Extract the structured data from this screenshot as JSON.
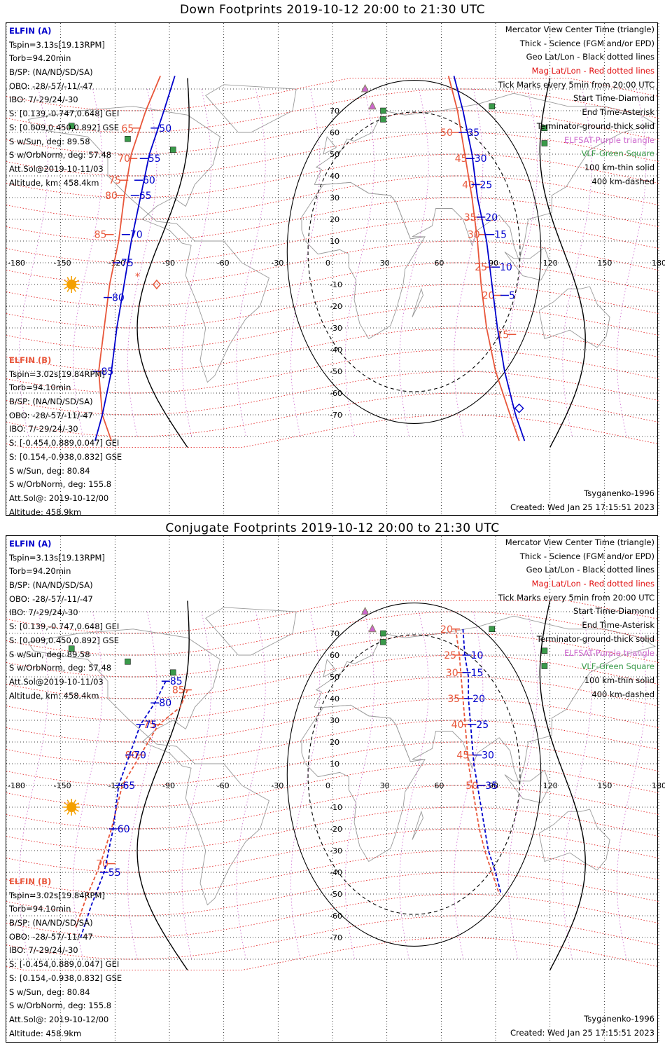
{
  "colors": {
    "elfin_a": "#0000cc",
    "elfin_b": "#e8563a",
    "mag_grid": "#e01010",
    "geo_grid": "#000000",
    "elfsat": "#cc66cc",
    "vlf": "#3a9a4a",
    "land": "#9a9a9a",
    "sun": "#f4a000"
  },
  "lon_ticks": [
    "-180",
    "-150",
    "-120",
    "-90",
    "-60",
    "-30",
    "0",
    "30",
    "60",
    "90",
    "120",
    "150",
    "180"
  ],
  "lat_ticks": [
    "70",
    "60",
    "50",
    "40",
    "30",
    "20",
    "10",
    "0",
    "-10",
    "-20",
    "-30",
    "-40",
    "-50",
    "-60",
    "-70"
  ],
  "legend": [
    "Mercator View Center Time (triangle)",
    "Thick - Science (FGM and/or EPD)",
    "Geo Lat/Lon - Black dotted lines",
    "Mag Lat/Lon - Red dotted lines",
    "Tick Marks every 5min from 20:00 UTC",
    "Start Time-Diamond",
    "End Time-Asterisk",
    "Terminator-ground-thick solid",
    "ELFSAT-Purple triangle",
    "VLF-Green Square",
    "100 km-thin solid",
    "400 km-dashed"
  ],
  "elfin_a": {
    "title": "ELFIN (A)",
    "lines": [
      "Tspin=3.13s[19.13RPM]",
      "Torb=94.20min",
      "B/SP: (NA/ND/SD/SA)",
      "OBO: -28/-57/-11/-47",
      "IBO: 7/-29/24/-30",
      "S: [0.139,-0.747,0.648] GEI",
      "S: [0.009,0.450,0.892] GSE",
      "S w/Sun, deg: 89.58",
      "S w/OrbNorm, deg: 57.48",
      "Att.Sol@2019-10-11/03",
      "Altitude, km: 458.4km"
    ]
  },
  "elfin_b": {
    "title": "ELFIN (B)",
    "lines": [
      "Tspin=3.02s[19.84RPM]",
      "Torb=94.10min",
      "B/SP: (NA/ND/SD/SA)",
      "OBO: -28/-57/-11/-47",
      "IBO: 7/-29/24/-30",
      "S: [-0.454,0.889,0.047] GEI",
      "S: [0.154,-0.938,0.832] GSE",
      "S w/Sun, deg: 80.84",
      "S w/OrbNorm, deg: 155.8",
      "Att.Sol@: 2019-10-12/00",
      "Altitude: 458.9km"
    ]
  },
  "model": "Tsyganenko-1996",
  "created": "Created: Wed Jan 25 17:15:51 2023",
  "panels": [
    {
      "id": "down",
      "title": "Down Footprints 2019-10-12 20:00 to 21:30 UTC",
      "a_west": {
        "style": "solid",
        "pts": [
          [
            -87,
            86
          ],
          [
            -93,
            70
          ],
          [
            -101,
            50
          ],
          [
            -106,
            30
          ],
          [
            -111,
            10
          ],
          [
            -115,
            -10
          ],
          [
            -119,
            -30
          ],
          [
            -122,
            -50
          ],
          [
            -127,
            -70
          ],
          [
            -131,
            -82
          ]
        ],
        "ticks": [
          [
            "50",
            -98,
            62
          ],
          [
            "55",
            -104,
            48
          ],
          [
            "60",
            -107,
            38
          ],
          [
            "65",
            -109,
            31
          ],
          [
            "70",
            -114,
            13
          ],
          [
            "75",
            -119,
            0
          ],
          [
            "80",
            -124,
            -16
          ],
          [
            "85",
            -130,
            -50
          ]
        ]
      },
      "b_west": {
        "style": "solid",
        "pts": [
          [
            -95,
            86
          ],
          [
            -103,
            70
          ],
          [
            -111,
            50
          ],
          [
            -115,
            30
          ],
          [
            -118,
            10
          ],
          [
            -123,
            -10
          ],
          [
            -126,
            -30
          ],
          [
            -129,
            -50
          ],
          [
            -127,
            -70
          ],
          [
            -122,
            -82
          ]
        ],
        "ticks": [
          [
            "65",
            -108,
            62
          ],
          [
            "70",
            -110,
            48
          ],
          [
            "75",
            -115,
            38
          ],
          [
            "80",
            -117,
            31
          ],
          [
            "85",
            -123,
            13
          ]
        ]
      },
      "a_east": {
        "style": "solid",
        "pts": [
          [
            67,
            86
          ],
          [
            72,
            70
          ],
          [
            77,
            50
          ],
          [
            80,
            30
          ],
          [
            85,
            10
          ],
          [
            88,
            -10
          ],
          [
            91,
            -30
          ],
          [
            95,
            -50
          ],
          [
            101,
            -70
          ],
          [
            106,
            -82
          ]
        ],
        "ticks": [
          [
            "35",
            72,
            60
          ],
          [
            "30",
            76,
            48
          ],
          [
            "25",
            79,
            36
          ],
          [
            "20",
            82,
            21
          ],
          [
            "15",
            87,
            13
          ],
          [
            "10",
            90,
            -2
          ],
          [
            "5",
            95,
            -15
          ]
        ]
      },
      "b_east": {
        "style": "solid",
        "pts": [
          [
            64,
            86
          ],
          [
            69,
            70
          ],
          [
            73,
            50
          ],
          [
            77,
            30
          ],
          [
            80,
            10
          ],
          [
            82,
            -10
          ],
          [
            85,
            -30
          ],
          [
            90,
            -50
          ],
          [
            98,
            -70
          ],
          [
            103,
            -82
          ]
        ],
        "ticks": [
          [
            "50",
            68,
            60
          ],
          [
            "45",
            76,
            48
          ],
          [
            "40",
            80,
            36
          ],
          [
            "35",
            81,
            21
          ],
          [
            "30",
            83,
            13
          ],
          [
            "25",
            87,
            -2
          ],
          [
            "20",
            91,
            -15
          ],
          [
            "15",
            99,
            -33
          ]
        ]
      },
      "start_b": [
        -97,
        -10
      ],
      "end_a": [
        -107,
        -6
      ],
      "diamond_a": [
        103,
        -67
      ]
    },
    {
      "id": "conj",
      "title": "Conjugate Footprints 2019-10-12 20:00 to 21:30 UTC",
      "a_west": {
        "style": "dashed",
        "pts": [
          [
            -92,
            48
          ],
          [
            -98,
            38
          ],
          [
            -106,
            28
          ],
          [
            -112,
            14
          ],
          [
            -118,
            0
          ],
          [
            -121,
            -20
          ],
          [
            -126,
            -40
          ],
          [
            -133,
            -55
          ],
          [
            -139,
            -70
          ]
        ],
        "ticks": [
          [
            "85",
            -92,
            48
          ],
          [
            "80",
            -98,
            38
          ],
          [
            "75",
            -106,
            28
          ],
          [
            "70",
            -112,
            14
          ],
          [
            "65",
            -118,
            0
          ],
          [
            "60",
            -121,
            -20
          ],
          [
            "55",
            -126,
            -40
          ]
        ]
      },
      "b_west": {
        "style": "dashed",
        "pts": [
          [
            -80,
            44
          ],
          [
            -84,
            36
          ],
          [
            -96,
            28
          ],
          [
            -106,
            14
          ],
          [
            -116,
            0
          ],
          [
            -122,
            -20
          ],
          [
            -128,
            -36
          ],
          [
            -136,
            -52
          ],
          [
            -142,
            -66
          ]
        ],
        "ticks": [
          [
            "85",
            -80,
            44
          ],
          [
            "75",
            -96,
            28
          ],
          [
            "80",
            -106,
            14
          ],
          [
            "70",
            -122,
            -36
          ]
        ]
      },
      "a_east": {
        "style": "dashed",
        "pts": [
          [
            72,
            72
          ],
          [
            73,
            60
          ],
          [
            75,
            50
          ],
          [
            75,
            40
          ],
          [
            76,
            30
          ],
          [
            77,
            20
          ],
          [
            78,
            10
          ],
          [
            80,
            0
          ],
          [
            82,
            -10
          ],
          [
            84,
            -20
          ],
          [
            86,
            -30
          ],
          [
            90,
            -40
          ],
          [
            93,
            -50
          ]
        ],
        "ticks": [
          [
            "10",
            74,
            60
          ],
          [
            "15",
            74,
            52
          ],
          [
            "20",
            75,
            40
          ],
          [
            "25",
            77,
            28
          ],
          [
            "30",
            80,
            14
          ],
          [
            "35",
            82,
            0
          ]
        ]
      },
      "b_east": {
        "style": "dashed",
        "pts": [
          [
            68,
            72
          ],
          [
            70,
            60
          ],
          [
            71,
            50
          ],
          [
            72,
            40
          ],
          [
            73,
            30
          ],
          [
            74,
            20
          ],
          [
            75,
            10
          ],
          [
            77,
            0
          ],
          [
            79,
            -10
          ],
          [
            81,
            -20
          ],
          [
            84,
            -30
          ],
          [
            88,
            -40
          ],
          [
            92,
            -50
          ]
        ],
        "ticks": [
          [
            "20",
            68,
            72
          ],
          [
            "25",
            70,
            60
          ],
          [
            "30",
            71,
            52
          ],
          [
            "35",
            72,
            40
          ],
          [
            "40",
            74,
            28
          ],
          [
            "45",
            77,
            14
          ],
          [
            "50",
            82,
            0
          ]
        ]
      }
    }
  ]
}
